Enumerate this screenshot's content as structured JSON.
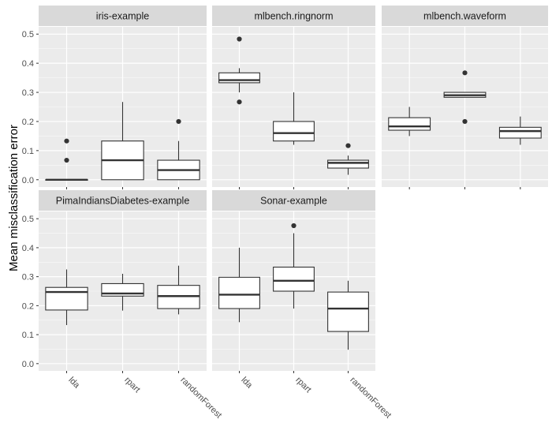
{
  "chart_data": {
    "type": "boxplot",
    "ylabel": "Mean misclassification error",
    "xlabel": "",
    "ylim": [
      -0.025,
      0.525
    ],
    "yticks": [
      0.0,
      0.1,
      0.2,
      0.3,
      0.4,
      0.5
    ],
    "ytick_labels": [
      "0.0",
      "0.1",
      "0.2",
      "0.3",
      "0.4",
      "0.5"
    ],
    "categories": [
      "lda",
      "rpart",
      "randomForest"
    ],
    "grid": true,
    "colors": {
      "panel_bg": "#ebebeb",
      "strip_bg": "#d9d9d9",
      "grid": "#ffffff",
      "box_fill": "#ffffff",
      "box_line": "#333333",
      "outlier": "#333333"
    },
    "panels": [
      {
        "title": "iris-example",
        "boxes": [
          {
            "category": "lda",
            "whisker_low": 0.0,
            "q1": 0.0,
            "median": 0.0,
            "q3": 0.0,
            "whisker_high": 0.0,
            "outliers": [
              0.067,
              0.133
            ]
          },
          {
            "category": "rpart",
            "whisker_low": 0.0,
            "q1": 0.0,
            "median": 0.067,
            "q3": 0.133,
            "whisker_high": 0.267,
            "outliers": []
          },
          {
            "category": "randomForest",
            "whisker_low": 0.0,
            "q1": 0.0,
            "median": 0.033,
            "q3": 0.067,
            "whisker_high": 0.133,
            "outliers": [
              0.2
            ]
          }
        ]
      },
      {
        "title": "mlbench.ringnorm",
        "boxes": [
          {
            "category": "lda",
            "whisker_low": 0.3,
            "q1": 0.333,
            "median": 0.342,
            "q3": 0.367,
            "whisker_high": 0.383,
            "outliers": [
              0.483,
              0.267
            ]
          },
          {
            "category": "rpart",
            "whisker_low": 0.12,
            "q1": 0.133,
            "median": 0.16,
            "q3": 0.2,
            "whisker_high": 0.3,
            "outliers": []
          },
          {
            "category": "randomForest",
            "whisker_low": 0.017,
            "q1": 0.04,
            "median": 0.058,
            "q3": 0.067,
            "whisker_high": 0.083,
            "outliers": [
              0.117
            ]
          }
        ]
      },
      {
        "title": "mlbench.waveform",
        "boxes": [
          {
            "category": "lda",
            "whisker_low": 0.15,
            "q1": 0.17,
            "median": 0.183,
            "q3": 0.213,
            "whisker_high": 0.25,
            "outliers": []
          },
          {
            "category": "rpart",
            "whisker_low": 0.283,
            "q1": 0.283,
            "median": 0.29,
            "q3": 0.3,
            "whisker_high": 0.3,
            "outliers": [
              0.367,
              0.2
            ]
          },
          {
            "category": "randomForest",
            "whisker_low": 0.12,
            "q1": 0.143,
            "median": 0.167,
            "q3": 0.18,
            "whisker_high": 0.217,
            "outliers": []
          }
        ]
      },
      {
        "title": "PimaIndiansDiabetes-example",
        "boxes": [
          {
            "category": "lda",
            "whisker_low": 0.133,
            "q1": 0.185,
            "median": 0.247,
            "q3": 0.263,
            "whisker_high": 0.325,
            "outliers": []
          },
          {
            "category": "rpart",
            "whisker_low": 0.183,
            "q1": 0.233,
            "median": 0.242,
            "q3": 0.276,
            "whisker_high": 0.31,
            "outliers": []
          },
          {
            "category": "randomForest",
            "whisker_low": 0.17,
            "q1": 0.19,
            "median": 0.233,
            "q3": 0.27,
            "whisker_high": 0.338,
            "outliers": []
          }
        ]
      },
      {
        "title": "Sonar-example",
        "boxes": [
          {
            "category": "lda",
            "whisker_low": 0.143,
            "q1": 0.19,
            "median": 0.238,
            "q3": 0.298,
            "whisker_high": 0.4,
            "outliers": []
          },
          {
            "category": "rpart",
            "whisker_low": 0.19,
            "q1": 0.25,
            "median": 0.286,
            "q3": 0.333,
            "whisker_high": 0.45,
            "outliers": [
              0.476
            ]
          },
          {
            "category": "randomForest",
            "whisker_low": 0.048,
            "q1": 0.111,
            "median": 0.19,
            "q3": 0.247,
            "whisker_high": 0.286,
            "outliers": []
          }
        ]
      }
    ]
  }
}
